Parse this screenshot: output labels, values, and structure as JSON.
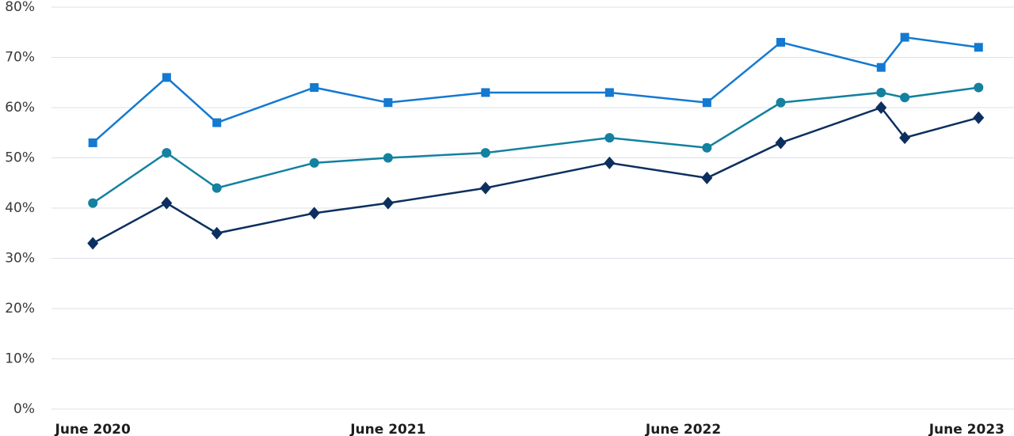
{
  "chart_data": {
    "type": "line",
    "x": [
      2020.5,
      2020.75,
      2020.92,
      2021.25,
      2021.5,
      2021.83,
      2022.25,
      2022.58,
      2022.83,
      2023.17,
      2023.25,
      2023.5
    ],
    "series": [
      {
        "color": "#1379d1",
        "marker": "square",
        "values": [
          53,
          66,
          57,
          64,
          61,
          63,
          63,
          61,
          73,
          68,
          74,
          72
        ]
      },
      {
        "color": "#13819f",
        "marker": "circle",
        "values": [
          41,
          51,
          44,
          49,
          50,
          51,
          54,
          52,
          61,
          63,
          62,
          64
        ]
      },
      {
        "color": "#0c2f5f",
        "marker": "diamond",
        "values": [
          33,
          41,
          35,
          39,
          41,
          44,
          49,
          46,
          53,
          60,
          54,
          58
        ]
      }
    ],
    "xlim": [
      2020.36,
      2023.62
    ],
    "xticks": [
      {
        "value": 2020.5,
        "label": "June 2020"
      },
      {
        "value": 2021.5,
        "label": "June 2021"
      },
      {
        "value": 2022.5,
        "label": "June 2022"
      },
      {
        "value": 2023.5,
        "label": "June 2023"
      }
    ],
    "ylim": [
      0,
      80
    ],
    "yticks": [
      {
        "value": 0,
        "label": "0%"
      },
      {
        "value": 10,
        "label": "10%"
      },
      {
        "value": 20,
        "label": "20%"
      },
      {
        "value": 30,
        "label": "30%"
      },
      {
        "value": 40,
        "label": "40%"
      },
      {
        "value": 50,
        "label": "50%"
      },
      {
        "value": 60,
        "label": "60%"
      },
      {
        "value": 70,
        "label": "70%"
      },
      {
        "value": 80,
        "label": "80%"
      }
    ],
    "grid": true
  }
}
